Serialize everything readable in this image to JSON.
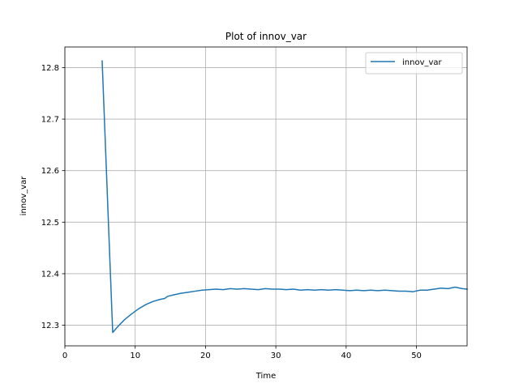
{
  "chart_data": {
    "type": "line",
    "title": "Plot of innov_var",
    "xlabel": "Time",
    "ylabel": "innov_var",
    "xlim": [
      0,
      57.2
    ],
    "ylim": [
      12.26,
      12.84
    ],
    "xticks": [
      0,
      10,
      20,
      30,
      40,
      50
    ],
    "xtick_labels": [
      "0",
      "10",
      "20",
      "30",
      "40",
      "50"
    ],
    "yticks": [
      12.3,
      12.4,
      12.5,
      12.6,
      12.7,
      12.8
    ],
    "ytick_labels": [
      "12.3",
      "12.4",
      "12.5",
      "12.6",
      "12.7",
      "12.8"
    ],
    "grid": true,
    "legend_position": "upper right",
    "series": [
      {
        "name": "innov_var",
        "color": "#1f77b4",
        "x": [
          5.3,
          6.8,
          7.5,
          8.5,
          9.5,
          10.5,
          11.5,
          12.5,
          13.5,
          14.2,
          14.6,
          15.5,
          16.5,
          17.5,
          18.5,
          19.5,
          20.5,
          21.5,
          22.5,
          23.5,
          24.5,
          25.5,
          26.5,
          27.5,
          28.5,
          29.5,
          30.5,
          31.5,
          32.5,
          33.5,
          34.5,
          35.5,
          36.5,
          37.5,
          38.5,
          39.5,
          40.5,
          41.5,
          42.5,
          43.5,
          44.5,
          45.5,
          46.5,
          47.5,
          48.5,
          49.5,
          50.5,
          51.5,
          52.5,
          53.5,
          54.5,
          55.5,
          56.5,
          57.2
        ],
        "y": [
          12.813,
          12.286,
          12.297,
          12.311,
          12.322,
          12.332,
          12.34,
          12.346,
          12.35,
          12.352,
          12.356,
          12.359,
          12.362,
          12.364,
          12.366,
          12.368,
          12.369,
          12.37,
          12.369,
          12.371,
          12.37,
          12.371,
          12.37,
          12.369,
          12.371,
          12.37,
          12.37,
          12.369,
          12.37,
          12.368,
          12.369,
          12.368,
          12.369,
          12.368,
          12.369,
          12.368,
          12.367,
          12.368,
          12.367,
          12.368,
          12.367,
          12.368,
          12.367,
          12.366,
          12.366,
          12.365,
          12.368,
          12.368,
          12.37,
          12.372,
          12.371,
          12.374,
          12.371,
          12.37
        ]
      }
    ]
  }
}
